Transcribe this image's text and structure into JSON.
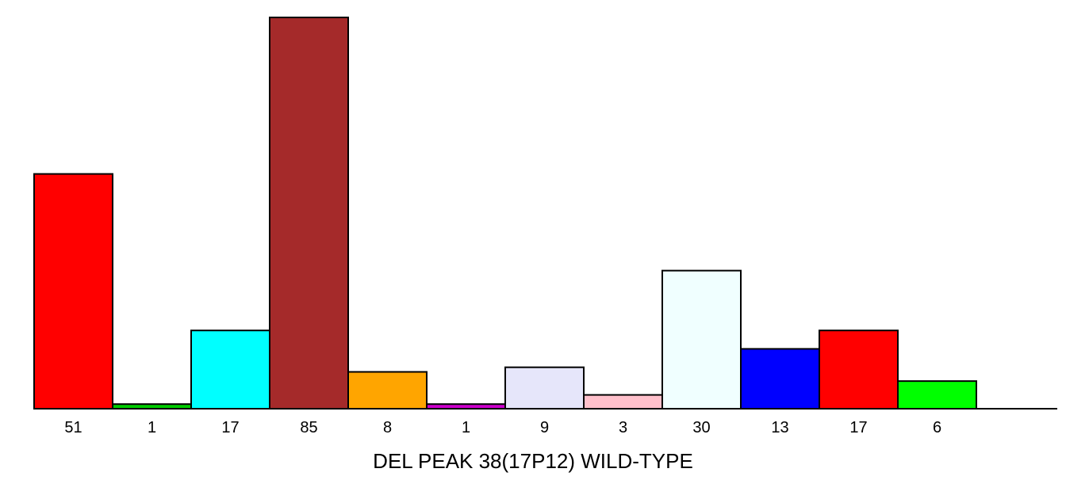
{
  "chart_data": {
    "type": "bar",
    "title": "",
    "xlabel": "DEL PEAK 38(17P12) WILD-TYPE",
    "ylabel": "",
    "categories": [
      "51",
      "1",
      "17",
      "85",
      "8",
      "1",
      "9",
      "3",
      "30",
      "13",
      "17",
      "6"
    ],
    "values": [
      51,
      1,
      17,
      85,
      8,
      1,
      9,
      3,
      30,
      13,
      17,
      6
    ],
    "colors": [
      "#ff0000",
      "#00cc00",
      "#00ffff",
      "#a52a2a",
      "#ffa500",
      "#cc00cc",
      "#e6e6fa",
      "#ffc0cb",
      "#f0ffff",
      "#0000ff",
      "#ff0000",
      "#00ff00"
    ],
    "ylim": [
      0,
      85
    ],
    "grid": false,
    "legend": "none"
  }
}
